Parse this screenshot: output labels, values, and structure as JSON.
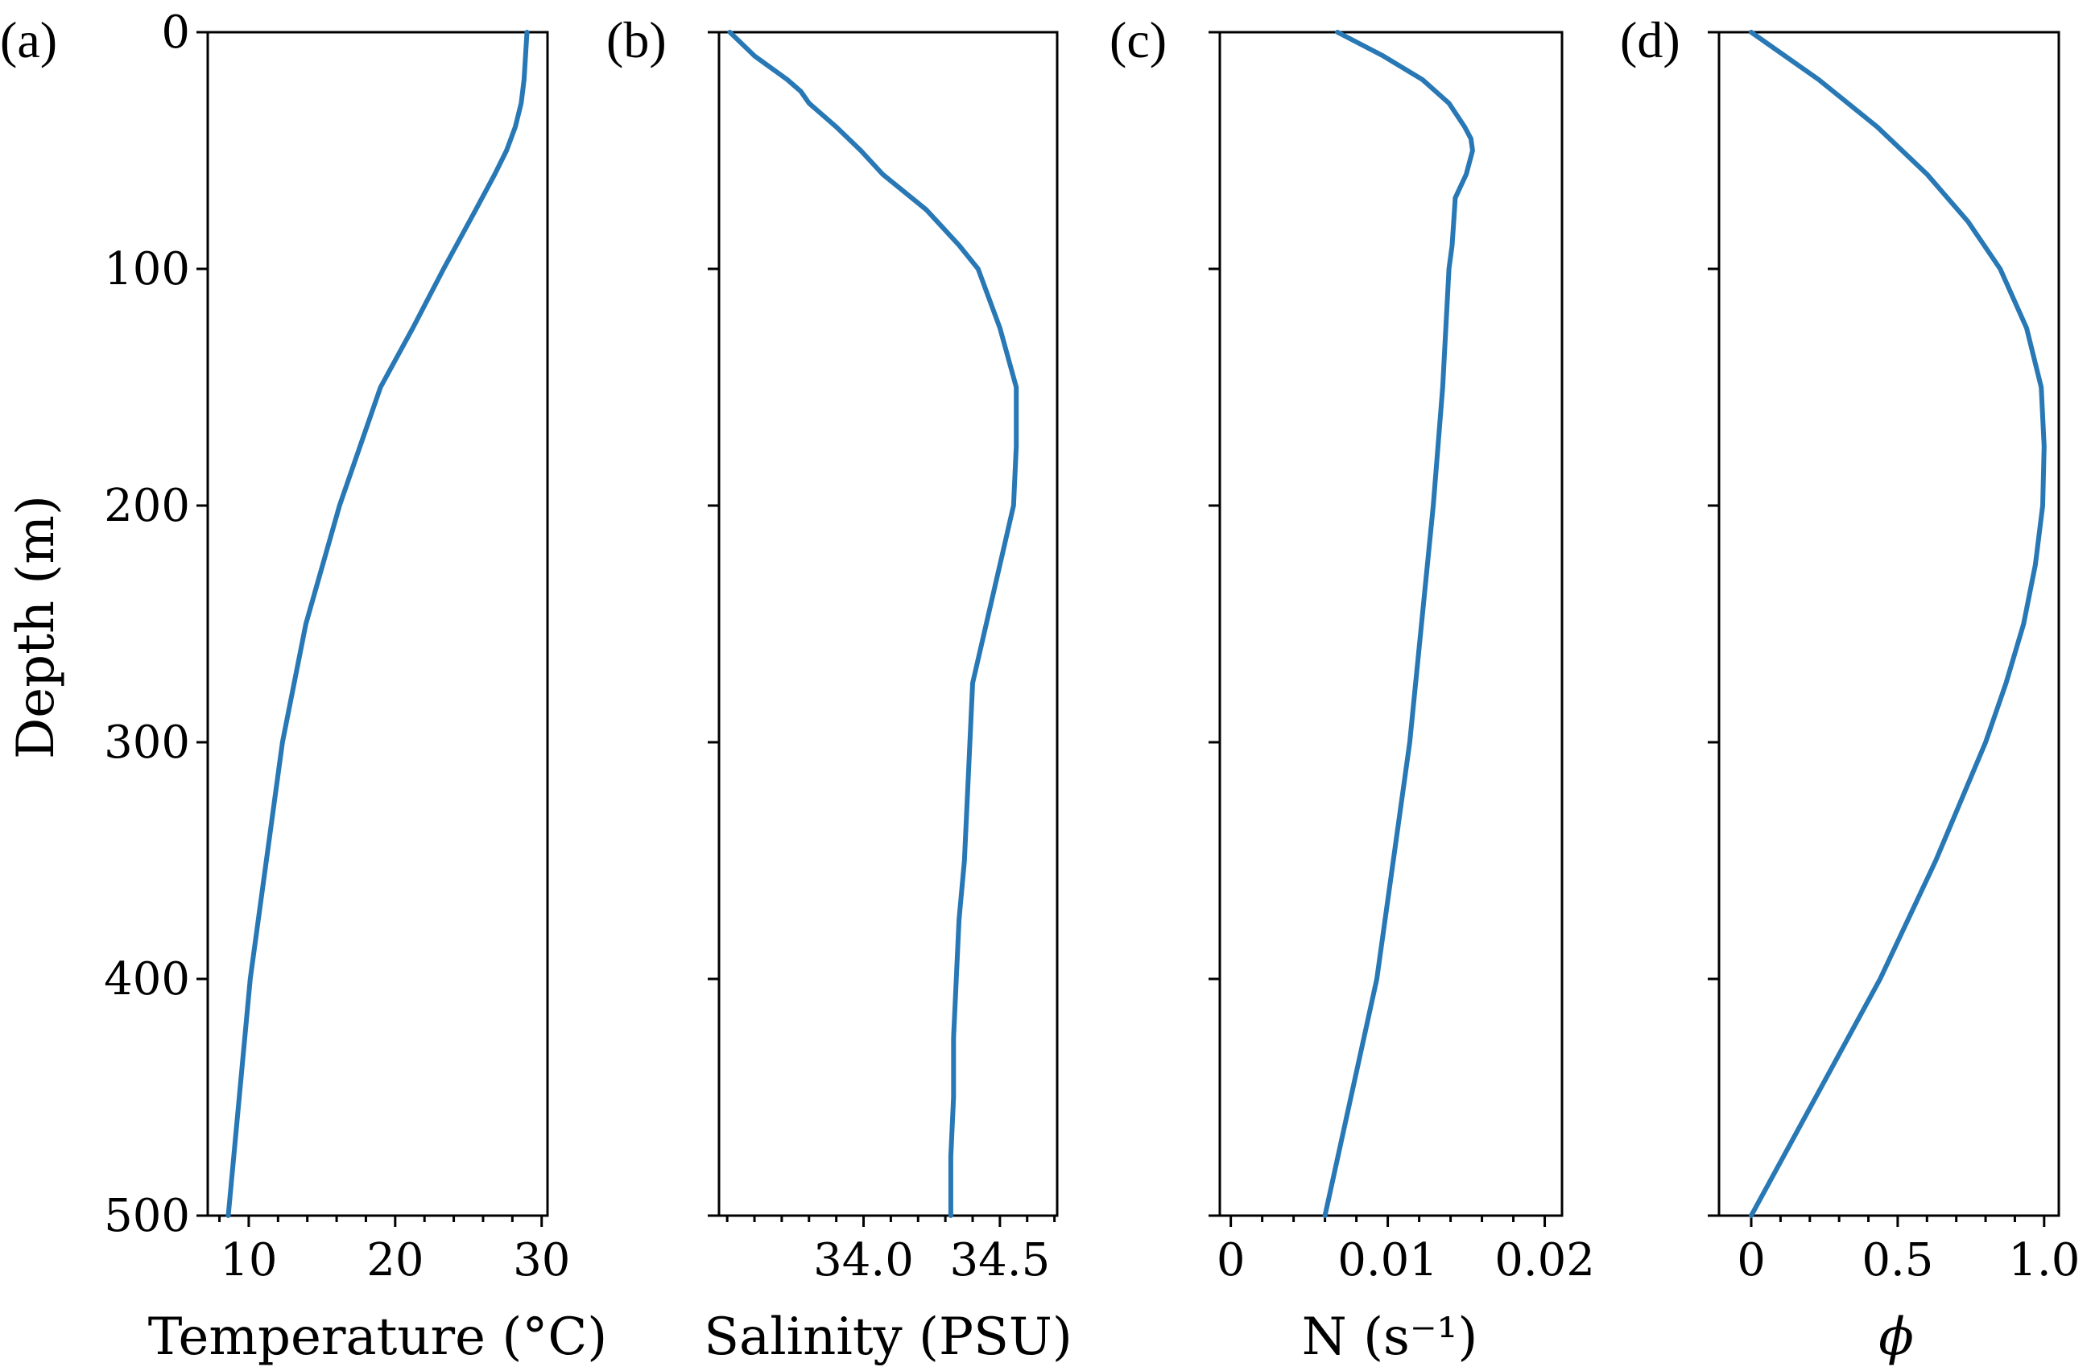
{
  "figure": {
    "line_color": "#2878b5",
    "ylabel": "Depth (m)",
    "y_ticks": [
      0,
      100,
      200,
      300,
      400,
      500
    ],
    "ylim": [
      0,
      500
    ]
  },
  "chart_data": [
    {
      "id": "a",
      "type": "line",
      "tag": "(a)",
      "xlabel": "Temperature (°C)",
      "xlim": [
        7.2,
        30.4
      ],
      "x_ticks": [
        10,
        20,
        30
      ],
      "x_tick_labels": [
        "10",
        "20",
        "30"
      ],
      "x_minor_ticks": [
        8,
        12,
        14,
        16,
        18,
        22,
        24,
        26,
        28
      ],
      "show_y_tick_labels": true,
      "depth": [
        0,
        10,
        20,
        30,
        40,
        50,
        60,
        75,
        100,
        125,
        150,
        200,
        250,
        300,
        400,
        500
      ],
      "values": [
        29.0,
        28.9,
        28.8,
        28.6,
        28.2,
        27.6,
        26.8,
        25.5,
        23.3,
        21.2,
        19.0,
        16.2,
        13.9,
        12.3,
        10.1,
        8.6
      ]
    },
    {
      "id": "b",
      "type": "line",
      "tag": "(b)",
      "xlabel": "Salinity (PSU)",
      "xlim": [
        33.47,
        34.71
      ],
      "x_ticks": [
        34.0,
        34.5
      ],
      "x_tick_labels": [
        "34.0",
        "34.5"
      ],
      "x_minor_ticks": [
        33.5,
        33.6,
        33.7,
        33.8,
        33.9,
        34.1,
        34.2,
        34.3,
        34.4,
        34.6,
        34.7
      ],
      "show_y_tick_labels": false,
      "depth": [
        0,
        10,
        20,
        25,
        30,
        40,
        50,
        60,
        75,
        80,
        90,
        100,
        125,
        150,
        175,
        200,
        225,
        275,
        350,
        375,
        400,
        425,
        450,
        475,
        500
      ],
      "values": [
        33.51,
        33.6,
        33.72,
        33.77,
        33.8,
        33.9,
        33.99,
        34.07,
        34.23,
        34.27,
        34.35,
        34.42,
        34.5,
        34.56,
        34.56,
        34.55,
        34.5,
        34.4,
        34.37,
        34.35,
        34.34,
        34.33,
        34.33,
        34.32,
        34.32
      ]
    },
    {
      "id": "c",
      "type": "line",
      "tag": "(c)",
      "xlabel": "N (s⁻¹)",
      "xlim": [
        -0.0007,
        0.0211
      ],
      "x_ticks": [
        0,
        0.01,
        0.02
      ],
      "x_tick_labels": [
        "0",
        "0.01",
        "0.02"
      ],
      "x_minor_ticks": [
        0.002,
        0.004,
        0.006,
        0.008,
        0.012,
        0.014,
        0.016,
        0.018
      ],
      "show_y_tick_labels": false,
      "depth": [
        0,
        10,
        20,
        30,
        40,
        45,
        50,
        55,
        60,
        70,
        80,
        90,
        100,
        150,
        200,
        300,
        400,
        500
      ],
      "values": [
        0.0068,
        0.0097,
        0.0122,
        0.0139,
        0.0149,
        0.0153,
        0.0154,
        0.0152,
        0.015,
        0.0143,
        0.0142,
        0.0141,
        0.0139,
        0.0135,
        0.0129,
        0.0114,
        0.0093,
        0.006
      ]
    },
    {
      "id": "d",
      "type": "line",
      "tag": "(d)",
      "xlabel": "ϕ",
      "xlim": [
        -0.11,
        1.05
      ],
      "x_ticks": [
        0,
        0.5,
        1.0
      ],
      "x_tick_labels": [
        "0",
        "0.5",
        "1.0"
      ],
      "x_minor_ticks": [
        0.1,
        0.2,
        0.3,
        0.4,
        0.6,
        0.7,
        0.8,
        0.9
      ],
      "show_y_tick_labels": false,
      "depth": [
        0,
        20,
        40,
        60,
        80,
        100,
        125,
        150,
        175,
        200,
        225,
        250,
        275,
        300,
        350,
        400,
        450,
        500
      ],
      "values": [
        0.0,
        0.23,
        0.43,
        0.6,
        0.74,
        0.85,
        0.94,
        0.99,
        1.0,
        0.995,
        0.97,
        0.93,
        0.87,
        0.8,
        0.63,
        0.44,
        0.22,
        0.0
      ]
    }
  ]
}
